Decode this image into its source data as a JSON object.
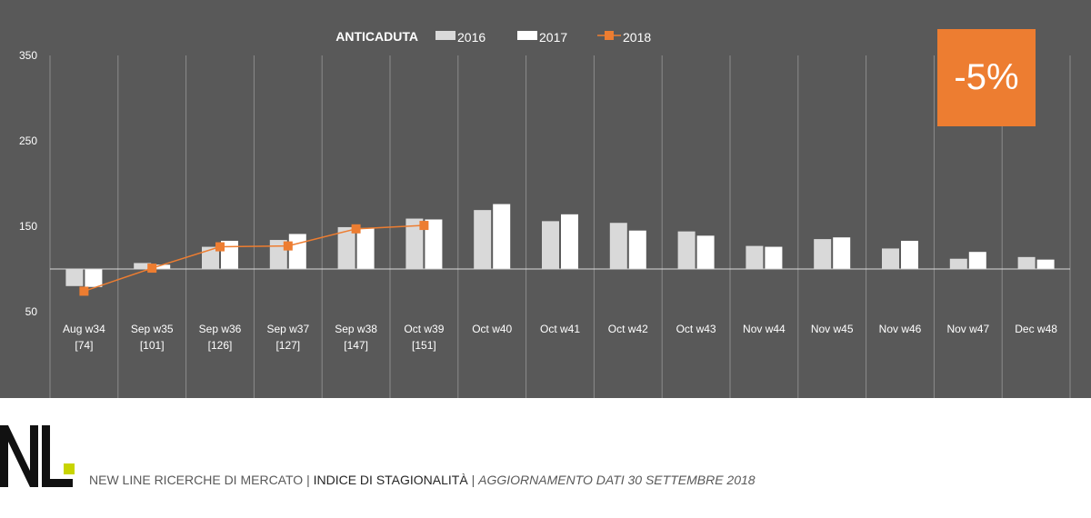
{
  "chart_data": {
    "type": "bar",
    "title": "ANTICADUTA",
    "categories": [
      "Aug w34",
      "Sep w35",
      "Sep w36",
      "Sep w37",
      "Sep w38",
      "Oct w39",
      "Oct w40",
      "Oct w41",
      "Oct w42",
      "Oct w43",
      "Nov w44",
      "Nov w45",
      "Nov w46",
      "Nov w47",
      "Dec w48"
    ],
    "category_sublabels": [
      "[74]",
      "[101]",
      "[126]",
      "[127]",
      "[147]",
      "[151]",
      "",
      "",
      "",
      "",
      "",
      "",
      "",
      "",
      ""
    ],
    "baseline": 100,
    "y_ticks": [
      50,
      150,
      250,
      350
    ],
    "ylim": [
      50,
      350
    ],
    "grid": false,
    "legend_placement": "top-center",
    "series": [
      {
        "name": "2016",
        "type": "bar",
        "color": "#d9d9d9",
        "values": [
          80,
          107,
          126,
          134,
          149,
          159,
          169,
          156,
          154,
          144,
          127,
          135,
          124,
          112,
          114
        ]
      },
      {
        "name": "2017",
        "type": "bar",
        "color": "#ffffff",
        "values": [
          79,
          105,
          133,
          141,
          148,
          158,
          176,
          164,
          145,
          139,
          126,
          137,
          133,
          120,
          111
        ]
      },
      {
        "name": "2018",
        "type": "line",
        "color": "#ed7d31",
        "values": [
          74,
          101,
          126,
          127,
          147,
          151,
          null,
          null,
          null,
          null,
          null,
          null,
          null,
          null,
          null
        ]
      }
    ]
  },
  "badge": {
    "value": "-5%",
    "color": "#ed7d31"
  },
  "footer": {
    "company": "NEW LINE RICERCHE DI MERCATO",
    "separator": "|",
    "index_label": "INDICE DI STAGIONALITÀ",
    "update": "AGGIORNAMENTO DATI 30 SETTEMBRE 2018"
  },
  "colors": {
    "panel_bg": "#595959",
    "logo_dark": "#111111",
    "logo_accent": "#c8d400"
  }
}
